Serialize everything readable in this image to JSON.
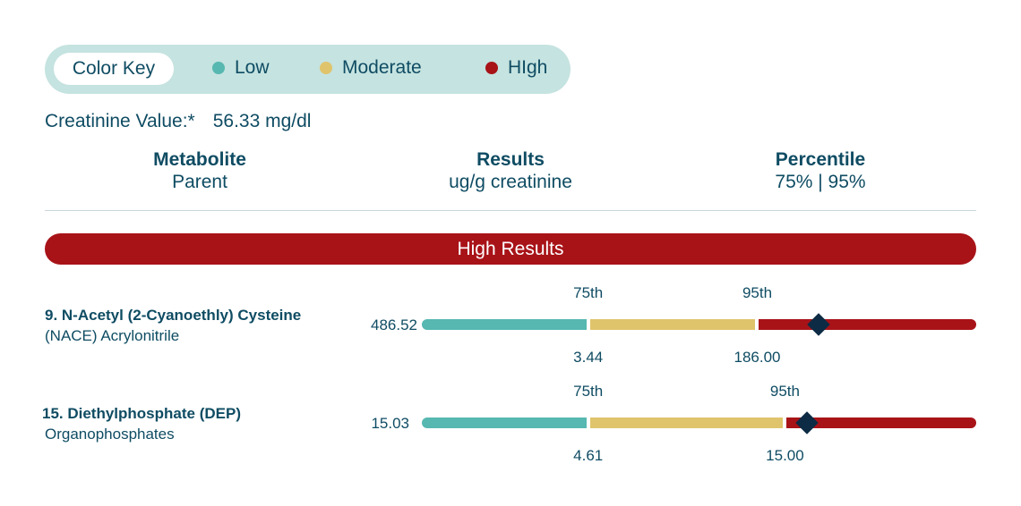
{
  "color_key": {
    "title": "Color Key",
    "items": [
      {
        "label": "Low",
        "color": "#56b8b0"
      },
      {
        "label": "Moderate",
        "color": "#dfc46c"
      },
      {
        "label": "HIgh",
        "color": "#a81318"
      }
    ]
  },
  "creatinine": {
    "label": "Creatinine Value:*",
    "value": "56.33 mg/dl"
  },
  "headers": {
    "metabolite": {
      "title": "Metabolite",
      "sub": "Parent"
    },
    "results": {
      "title": "Results",
      "sub": "ug/g creatinine"
    },
    "percentile": {
      "title": "Percentile",
      "sub": "75% | 95%"
    }
  },
  "banner": "High Results",
  "rows": [
    {
      "name": "9. N-Acetyl (2-Cyanoethly) Cysteine",
      "parent": "(NACE) Acrylonitrile",
      "result": "486.52",
      "p75_label": "75th",
      "p95_label": "95th",
      "p75_value": "3.44",
      "p95_value": "186.00",
      "p75_fraction": 0.3,
      "p95_fraction": 0.605,
      "marker_fraction": 0.715
    },
    {
      "name": "15. Diethylphosphate (DEP)",
      "parent": "Organophosphates",
      "result": "15.03",
      "p75_label": "75th",
      "p95_label": "95th",
      "p75_value": "4.61",
      "p95_value": "15.00",
      "p75_fraction": 0.3,
      "p95_fraction": 0.655,
      "marker_fraction": 0.695
    }
  ]
}
